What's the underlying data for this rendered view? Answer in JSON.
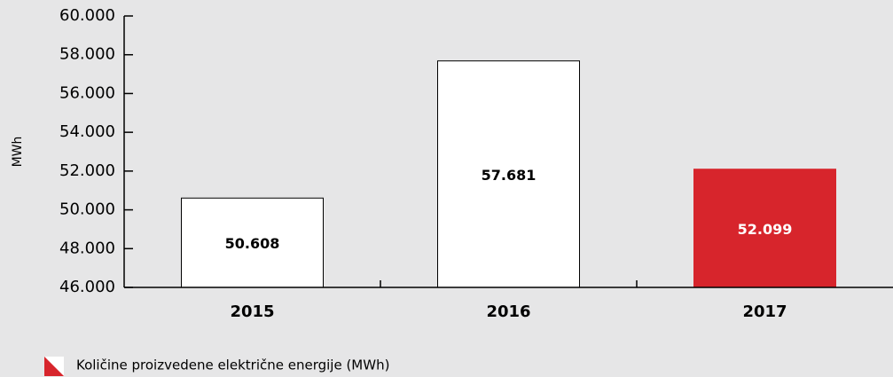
{
  "chart_data": {
    "type": "bar",
    "y_label": "MWh",
    "categories": [
      "2015",
      "2016",
      "2017"
    ],
    "series": [
      {
        "name": "Količine proizvedene električne energije (MWh)",
        "values": [
          50608,
          57681,
          52099
        ],
        "value_labels": [
          "50.608",
          "57.681",
          "52.099"
        ],
        "colors": [
          "#ffffff",
          "#ffffff",
          "#d7252c"
        ],
        "value_label_colors": [
          "#000000",
          "#000000",
          "#ffffff"
        ]
      }
    ],
    "ylim": [
      46000,
      60000
    ],
    "yticks": [
      {
        "value": 46000,
        "label": "46.000"
      },
      {
        "value": 48000,
        "label": "48.000"
      },
      {
        "value": 50000,
        "label": "50.000"
      },
      {
        "value": 52000,
        "label": "52.000"
      },
      {
        "value": 54000,
        "label": "54.000"
      },
      {
        "value": 56000,
        "label": "56.000"
      },
      {
        "value": 58000,
        "label": "58.000"
      },
      {
        "value": 60000,
        "label": "60.000"
      }
    ],
    "legend_icon_colors": [
      "#ffffff",
      "#d7252c"
    ]
  }
}
